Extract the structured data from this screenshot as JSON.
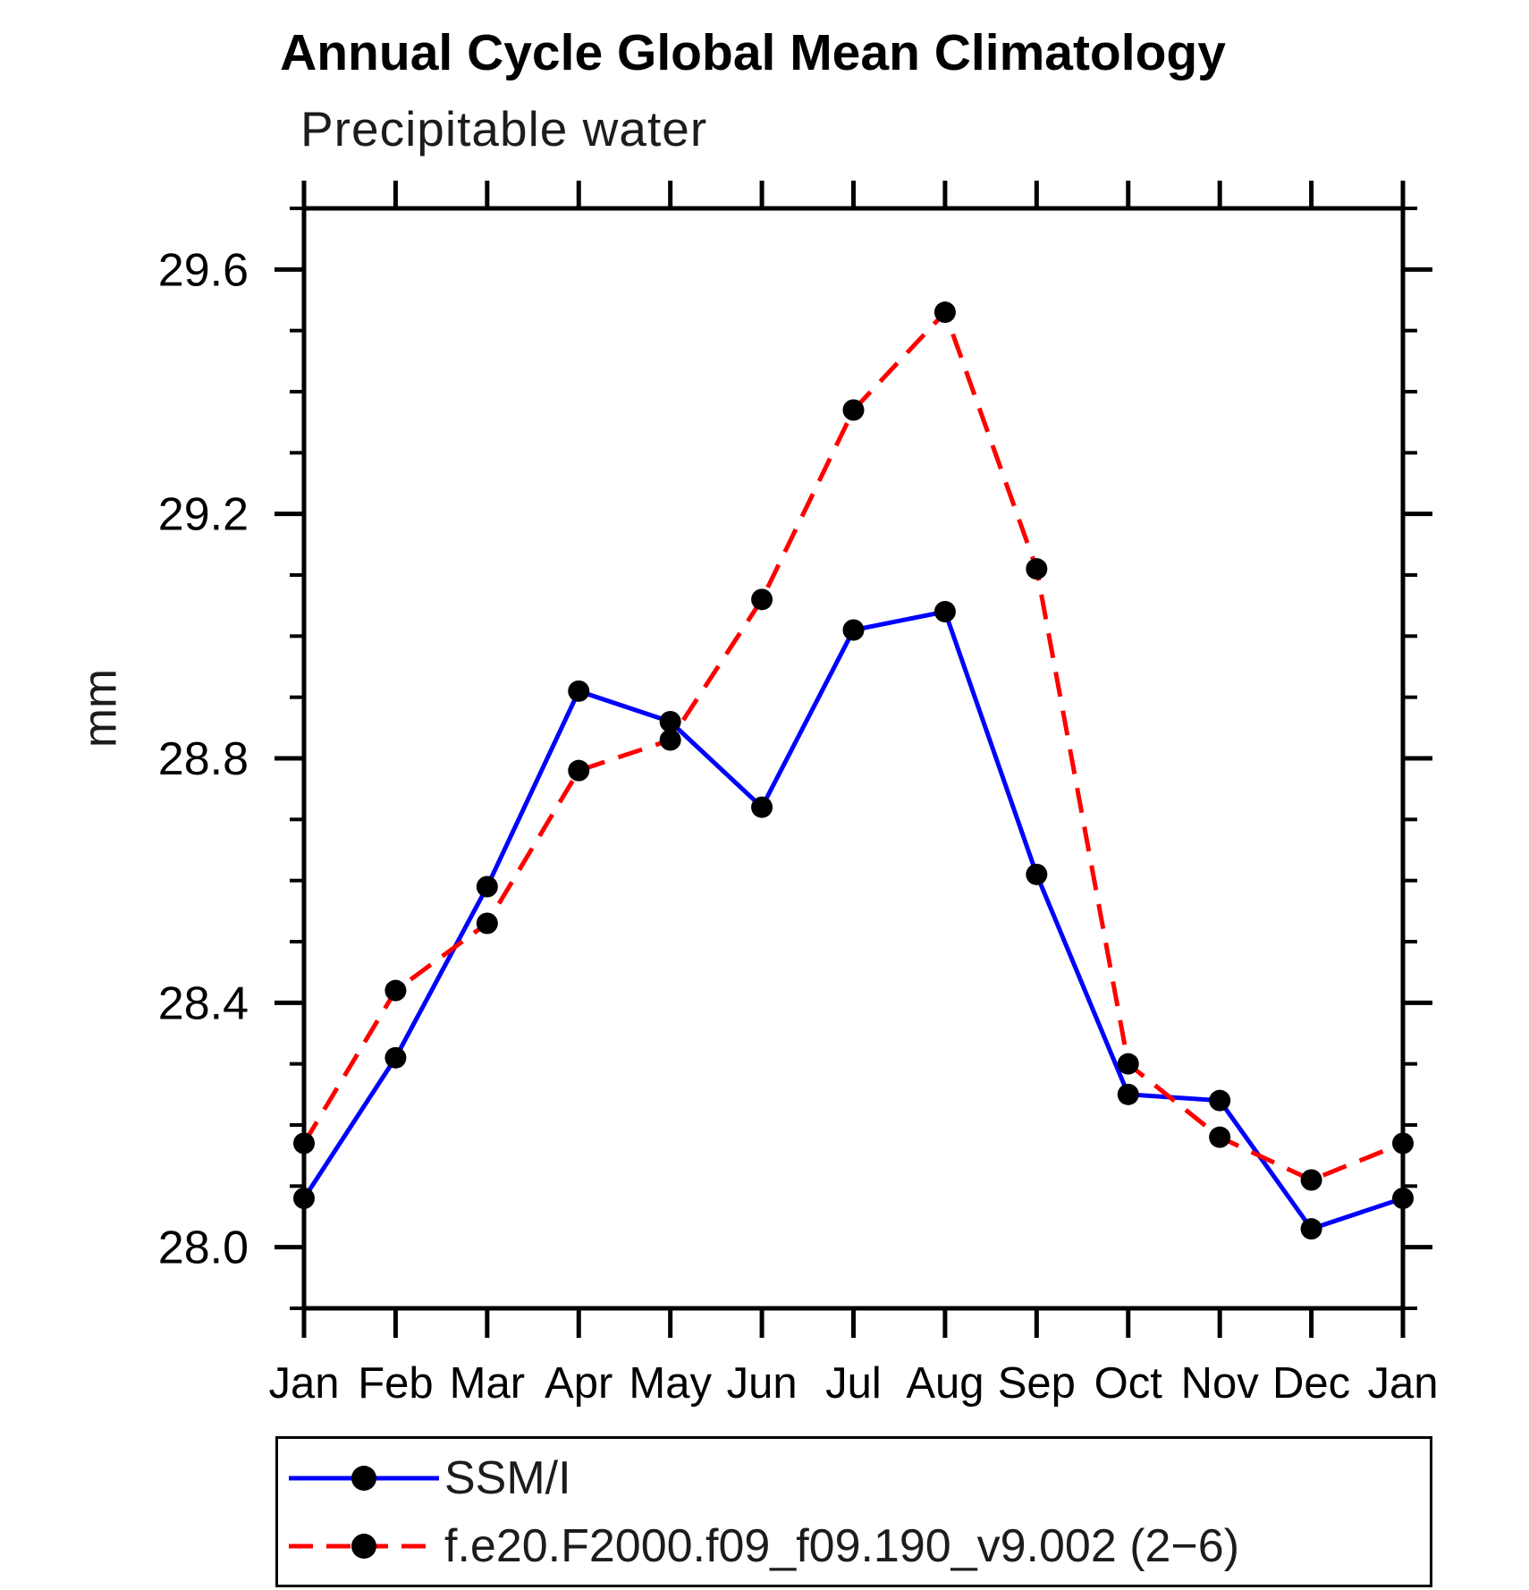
{
  "chart_data": {
    "type": "line",
    "title": "Annual Cycle Global Mean Climatology",
    "subtitle": "Precipitable water",
    "ylabel": "mm",
    "xlabel": "",
    "x_labels": [
      "Jan",
      "Feb",
      "Mar",
      "Apr",
      "May",
      "Jun",
      "Jul",
      "Aug",
      "Sep",
      "Oct",
      "Nov",
      "Dec",
      "Jan"
    ],
    "ylim": [
      27.9,
      29.7
    ],
    "yticks": [
      {
        "value": 28.0,
        "label": "28.0"
      },
      {
        "value": 28.4,
        "label": "28.4"
      },
      {
        "value": 28.8,
        "label": "28.8"
      },
      {
        "value": 29.2,
        "label": "29.2"
      },
      {
        "value": 29.6,
        "label": "29.6"
      }
    ],
    "ytick_minor_step": 0.1,
    "grid": false,
    "legend_position": "bottom-left-box",
    "series": [
      {
        "name": "SSM/I",
        "color": "#0000ff",
        "line_style": "solid",
        "marker": "filled-circle",
        "marker_color": "#000000",
        "values": [
          28.08,
          28.31,
          28.59,
          28.91,
          28.86,
          28.72,
          29.01,
          29.04,
          28.61,
          28.25,
          28.24,
          28.03,
          28.08
        ]
      },
      {
        "name": "f.e20.F2000.f09_f09.190_v9.002 (2−6)",
        "color": "#ff0000",
        "line_style": "dashed",
        "marker": "filled-circle",
        "marker_color": "#000000",
        "values": [
          28.17,
          28.42,
          28.53,
          28.78,
          28.83,
          29.06,
          29.37,
          29.53,
          29.11,
          28.3,
          28.18,
          28.11,
          28.17
        ]
      }
    ]
  }
}
